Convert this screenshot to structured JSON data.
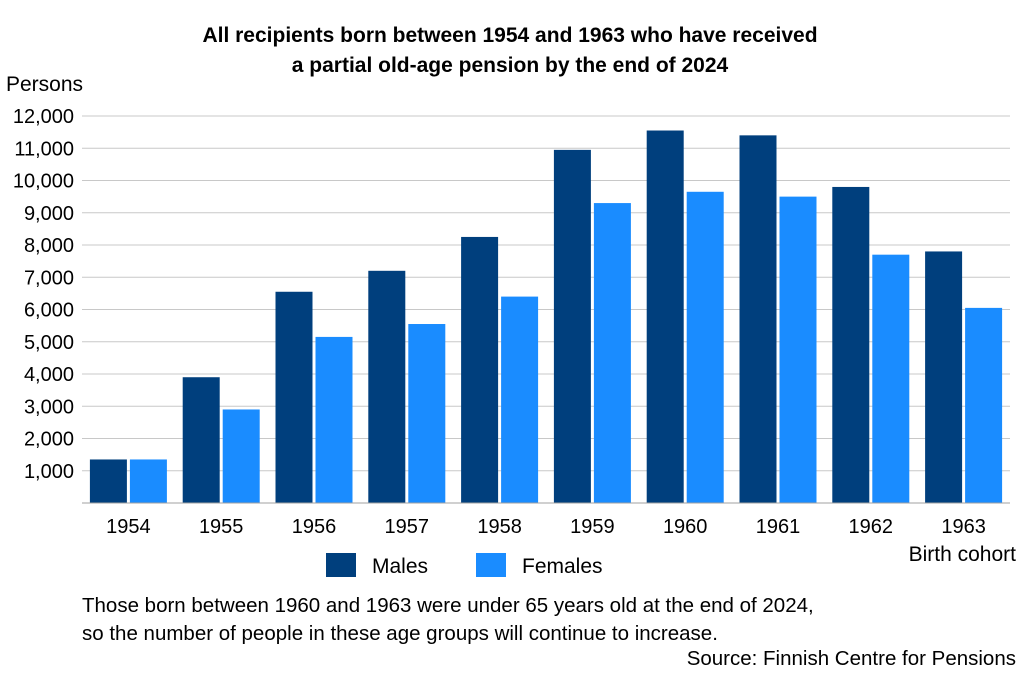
{
  "chart_data": {
    "type": "bar",
    "title_line1": "All recipients born between 1954 and 1963 who have received",
    "title_line2": "a partial old-age pension by the end of 2024",
    "ylabel": "Persons",
    "xlabel": "Birth cohort",
    "ylim": [
      0,
      12000
    ],
    "yticks": [
      1000,
      2000,
      3000,
      4000,
      5000,
      6000,
      7000,
      8000,
      9000,
      10000,
      11000,
      12000
    ],
    "ytick_labels": [
      "1,000",
      "2,000",
      "3,000",
      "4,000",
      "5,000",
      "6,000",
      "7,000",
      "8,000",
      "9,000",
      "10,000",
      "11,000",
      "12,000"
    ],
    "grid": true,
    "legend_position": "bottom",
    "categories": [
      "1954",
      "1955",
      "1956",
      "1957",
      "1958",
      "1959",
      "1960",
      "1961",
      "1962",
      "1963"
    ],
    "series": [
      {
        "name": "Males",
        "color": "#003f7d",
        "values": [
          1350,
          3900,
          6550,
          7200,
          8250,
          10950,
          11550,
          11400,
          9800,
          7800
        ]
      },
      {
        "name": "Females",
        "color": "#1a8cff",
        "values": [
          1350,
          2900,
          5150,
          5550,
          6400,
          9300,
          9650,
          9500,
          7700,
          6050
        ]
      }
    ]
  },
  "note": {
    "line1": "Those born between 1960 and 1963 were under 65 years old at the end of 2024,",
    "line2": "so the number of people in these age groups will continue to increase."
  },
  "source": "Source: Finnish Centre for Pensions"
}
